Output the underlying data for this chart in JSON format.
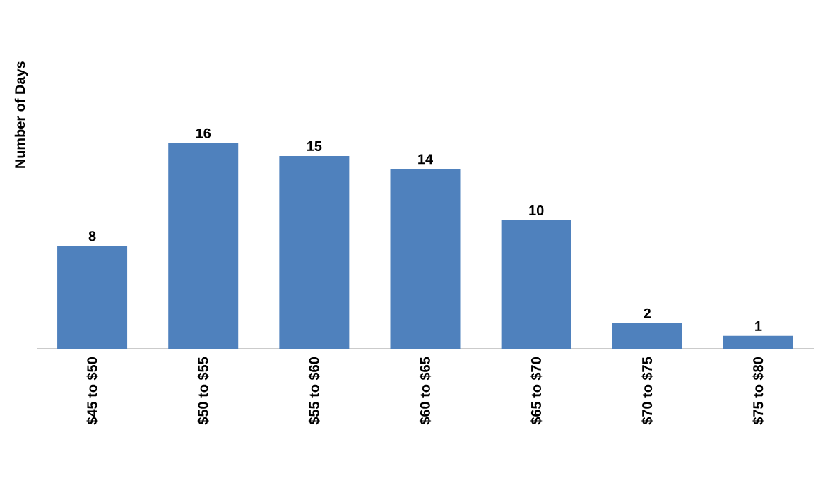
{
  "chart_data": {
    "type": "bar",
    "ylabel": "Number of Days",
    "categories": [
      "$45 to $50",
      "$50 to $55",
      "$55 to $60",
      "$60 to $65",
      "$65 to $70",
      "$70 to $75",
      "$75 to $80"
    ],
    "values": [
      8,
      16,
      15,
      14,
      10,
      2,
      1
    ],
    "color": "#4f81bd",
    "data_labels": true
  }
}
